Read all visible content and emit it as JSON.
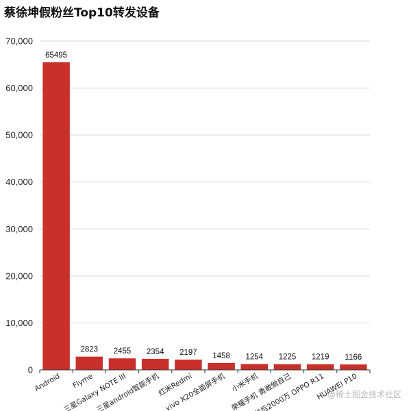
{
  "title": "蔡徐坤假粉丝Top10转发设备",
  "watermark": "@稀土掘金技术社区",
  "colors": {
    "bar": "#c9302c",
    "grid": "#d8d8d8"
  },
  "chart_data": {
    "type": "bar",
    "title": "蔡徐坤假粉丝Top10转发设备",
    "categories": [
      "Android",
      "Flyme",
      "三星Galaxy NOTE III",
      "三星android智能手机",
      "红米Redmi",
      "vivo X20全面屏手机",
      "小米手机",
      "荣耀手机 勇敢做自己",
      "前后2000万 OPPO R11",
      "HUAWEI P10"
    ],
    "values": [
      65495,
      2823,
      2455,
      2354,
      2197,
      1458,
      1254,
      1225,
      1219,
      1166
    ],
    "ylim": [
      0,
      70000
    ],
    "yticks": [
      0,
      10000,
      20000,
      30000,
      40000,
      50000,
      60000,
      70000
    ],
    "ytick_labels": [
      "0",
      "10,000",
      "20,000",
      "30,000",
      "40,000",
      "50,000",
      "60,000",
      "70,000"
    ],
    "xlabel": "",
    "ylabel": "",
    "grid": true,
    "legend": "none"
  }
}
